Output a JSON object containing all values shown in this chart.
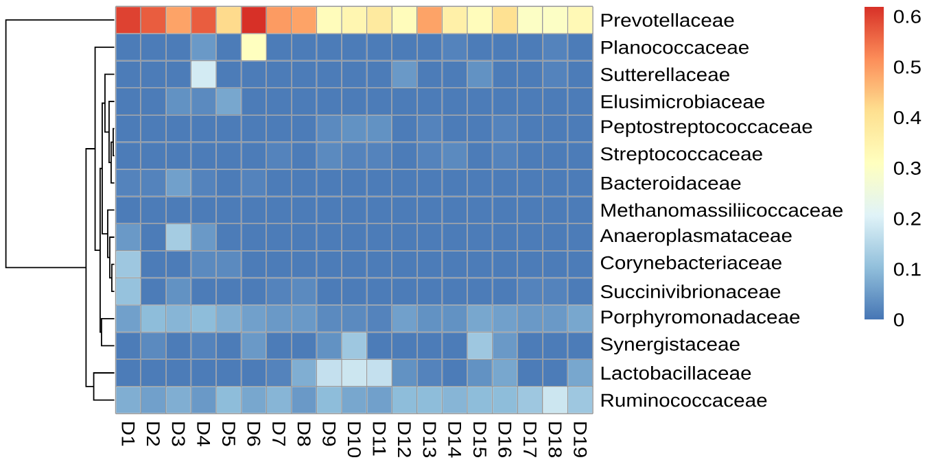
{
  "chart_data": {
    "type": "heatmap",
    "categories": [
      "D1",
      "D2",
      "D3",
      "D4",
      "D5",
      "D6",
      "D7",
      "D8",
      "D9",
      "D10",
      "D11",
      "D12",
      "D13",
      "D14",
      "D15",
      "D16",
      "D17",
      "D18",
      "D19"
    ],
    "y_categories": [
      "Prevotellaceae",
      "Planococcaceae",
      "Sutterellaceae",
      "Elusimicrobiaceae",
      "Peptostreptococcaceae",
      "Streptococcaceae",
      "Bacteroidaceae",
      "Methanomassiliicoccaceae",
      "Anaeroplasmataceae",
      "Corynebacteriaceae",
      "Succinivibrionaceae",
      "Porphyromonadaceae",
      "Synergistaceae",
      "Lactobacillaceae",
      "Ruminococcaceae"
    ],
    "cells": [
      [
        0.6,
        0.57,
        0.49,
        0.57,
        0.42,
        0.62,
        0.5,
        0.49,
        0.32,
        0.34,
        0.38,
        0.32,
        0.49,
        0.36,
        0.32,
        0.41,
        0.3,
        0.3,
        0.33
      ],
      [
        0.01,
        0.01,
        0.01,
        0.05,
        0.01,
        0.31,
        0.01,
        0.01,
        0.01,
        0.01,
        0.01,
        0.01,
        0.01,
        0.02,
        0.01,
        0.01,
        0.01,
        0.02,
        0.01
      ],
      [
        0.01,
        0.01,
        0.01,
        0.19,
        0.01,
        0.01,
        0.01,
        0.01,
        0.01,
        0.01,
        0.01,
        0.05,
        0.01,
        0.01,
        0.04,
        0.01,
        0.01,
        0.02,
        0.01
      ],
      [
        0.01,
        0.01,
        0.04,
        0.03,
        0.07,
        0.01,
        0.01,
        0.01,
        0.01,
        0.01,
        0.01,
        0.01,
        0.01,
        0.01,
        0.01,
        0.01,
        0.01,
        0.01,
        0.01
      ],
      [
        0.01,
        0.01,
        0.01,
        0.01,
        0.01,
        0.01,
        0.01,
        0.01,
        0.03,
        0.04,
        0.04,
        0.01,
        0.02,
        0.01,
        0.01,
        0.02,
        0.01,
        0.01,
        0.01
      ],
      [
        0.01,
        0.01,
        0.01,
        0.01,
        0.01,
        0.01,
        0.02,
        0.01,
        0.03,
        0.02,
        0.02,
        0.01,
        0.02,
        0.03,
        0.01,
        0.02,
        0.01,
        0.01,
        0.01
      ],
      [
        0.02,
        0.02,
        0.06,
        0.02,
        0.01,
        0.02,
        0.01,
        0.01,
        0.01,
        0.01,
        0.01,
        0.01,
        0.01,
        0.01,
        0.01,
        0.01,
        0.01,
        0.01,
        0.01
      ],
      [
        0.01,
        0.01,
        0.01,
        0.01,
        0.01,
        0.01,
        0.01,
        0.01,
        0.01,
        0.01,
        0.01,
        0.01,
        0.01,
        0.01,
        0.01,
        0.01,
        0.01,
        0.01,
        0.01
      ],
      [
        0.05,
        0.01,
        0.13,
        0.05,
        0.01,
        0.01,
        0.01,
        0.01,
        0.01,
        0.01,
        0.01,
        0.01,
        0.01,
        0.01,
        0.01,
        0.01,
        0.01,
        0.01,
        0.01
      ],
      [
        0.12,
        0.01,
        0.01,
        0.03,
        0.03,
        0.01,
        0.01,
        0.01,
        0.01,
        0.01,
        0.01,
        0.01,
        0.01,
        0.01,
        0.01,
        0.01,
        0.01,
        0.01,
        0.01
      ],
      [
        0.11,
        0.01,
        0.04,
        0.01,
        0.01,
        0.01,
        0.02,
        0.03,
        0.01,
        0.01,
        0.01,
        0.01,
        0.01,
        0.01,
        0.01,
        0.01,
        0.02,
        0.02,
        0.01
      ],
      [
        0.06,
        0.1,
        0.09,
        0.1,
        0.08,
        0.06,
        0.05,
        0.05,
        0.03,
        0.03,
        0.02,
        0.06,
        0.04,
        0.04,
        0.07,
        0.06,
        0.05,
        0.05,
        0.07
      ],
      [
        0.01,
        0.03,
        0.01,
        0.02,
        0.01,
        0.05,
        0.01,
        0.01,
        0.04,
        0.12,
        0.01,
        0.01,
        0.01,
        0.01,
        0.12,
        0.05,
        0.01,
        0.01,
        0.01
      ],
      [
        0.01,
        0.01,
        0.01,
        0.01,
        0.01,
        0.01,
        0.02,
        0.08,
        0.17,
        0.18,
        0.17,
        0.04,
        0.02,
        0.01,
        0.04,
        0.07,
        0.01,
        0.01,
        0.07
      ],
      [
        0.08,
        0.06,
        0.08,
        0.05,
        0.1,
        0.07,
        0.09,
        0.05,
        0.1,
        0.07,
        0.06,
        0.1,
        0.1,
        0.09,
        0.1,
        0.1,
        0.12,
        0.18,
        0.12
      ]
    ],
    "clim": [
      0,
      0.62
    ],
    "cticks": [
      0,
      0.1,
      0.2,
      0.3,
      0.4,
      0.5,
      0.6
    ],
    "grid": true
  }
}
